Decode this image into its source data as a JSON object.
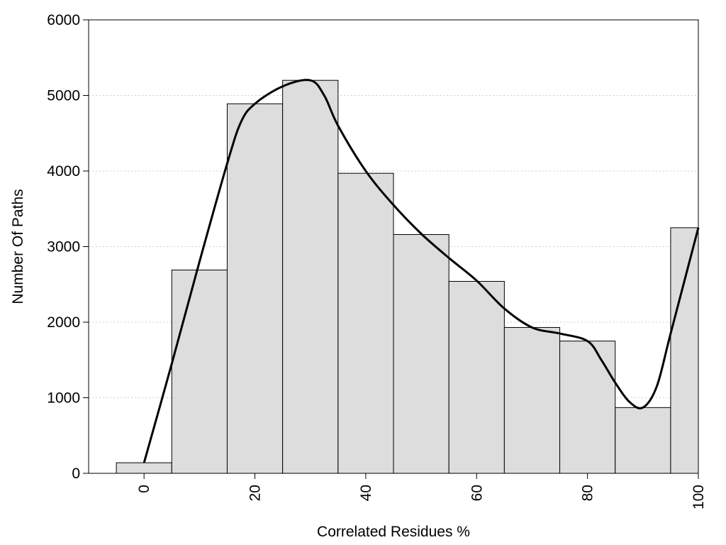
{
  "chart_data": {
    "type": "bar",
    "title": "",
    "xlabel": "Correlated Residues %",
    "ylabel": "Number Of Paths",
    "xlim": [
      -10,
      100
    ],
    "ylim": [
      0,
      6000
    ],
    "x_ticks": [
      0,
      20,
      40,
      60,
      80,
      100
    ],
    "x_tick_labels": [
      "0",
      "20",
      "40",
      "60",
      "80",
      "100"
    ],
    "y_ticks": [
      0,
      1000,
      2000,
      3000,
      4000,
      5000,
      6000
    ],
    "y_tick_labels": [
      "0",
      "1000",
      "2000",
      "3000",
      "4000",
      "5000",
      "6000"
    ],
    "grid": "horizontal dotted",
    "bar_width": 10,
    "bars": [
      {
        "x": 0,
        "value": 140
      },
      {
        "x": 10,
        "value": 2690
      },
      {
        "x": 20,
        "value": 4890
      },
      {
        "x": 30,
        "value": 5200
      },
      {
        "x": 40,
        "value": 3970
      },
      {
        "x": 50,
        "value": 3160
      },
      {
        "x": 60,
        "value": 2540
      },
      {
        "x": 70,
        "value": 1930
      },
      {
        "x": 80,
        "value": 1750
      },
      {
        "x": 90,
        "value": 870
      },
      {
        "x": 100,
        "value": 3250
      }
    ],
    "curve": [
      [
        0,
        140
      ],
      [
        5,
        1450
      ],
      [
        10,
        2800
      ],
      [
        15,
        4100
      ],
      [
        17.5,
        4650
      ],
      [
        20,
        4890
      ],
      [
        25,
        5120
      ],
      [
        30,
        5200
      ],
      [
        32.5,
        5000
      ],
      [
        35,
        4600
      ],
      [
        40,
        4000
      ],
      [
        45,
        3550
      ],
      [
        50,
        3170
      ],
      [
        55,
        2850
      ],
      [
        60,
        2550
      ],
      [
        65,
        2180
      ],
      [
        70,
        1930
      ],
      [
        75,
        1850
      ],
      [
        80,
        1750
      ],
      [
        82.5,
        1500
      ],
      [
        85,
        1200
      ],
      [
        87.5,
        950
      ],
      [
        90,
        870
      ],
      [
        92.5,
        1150
      ],
      [
        95,
        1850
      ],
      [
        100,
        3250
      ]
    ],
    "colors": {
      "bar_fill": "#dddddd",
      "bar_stroke": "#000000",
      "curve": "#000000",
      "grid": "#cccccc"
    }
  }
}
